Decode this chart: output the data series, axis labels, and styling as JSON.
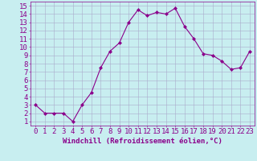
{
  "x": [
    0,
    1,
    2,
    3,
    4,
    5,
    6,
    7,
    8,
    9,
    10,
    11,
    12,
    13,
    14,
    15,
    16,
    17,
    18,
    19,
    20,
    21,
    22,
    23
  ],
  "y": [
    3.0,
    2.0,
    2.0,
    2.0,
    1.0,
    3.0,
    4.5,
    7.5,
    9.5,
    10.5,
    13.0,
    14.5,
    13.8,
    14.2,
    14.0,
    14.7,
    12.5,
    11.0,
    9.2,
    9.0,
    8.3,
    7.3,
    7.5,
    9.5
  ],
  "line_color": "#8B008B",
  "marker": "D",
  "marker_size": 2,
  "bg_color": "#c8eef0",
  "grid_color": "#aaaacc",
  "xlabel": "Windchill (Refroidissement éolien,°C)",
  "xlabel_color": "#8B008B",
  "xlim": [
    -0.5,
    23.5
  ],
  "ylim": [
    0.5,
    15.5
  ],
  "yticks": [
    1,
    2,
    3,
    4,
    5,
    6,
    7,
    8,
    9,
    10,
    11,
    12,
    13,
    14,
    15
  ],
  "xticks": [
    0,
    1,
    2,
    3,
    4,
    5,
    6,
    7,
    8,
    9,
    10,
    11,
    12,
    13,
    14,
    15,
    16,
    17,
    18,
    19,
    20,
    21,
    22,
    23
  ],
  "tick_color": "#8B008B",
  "font_size": 6.5
}
